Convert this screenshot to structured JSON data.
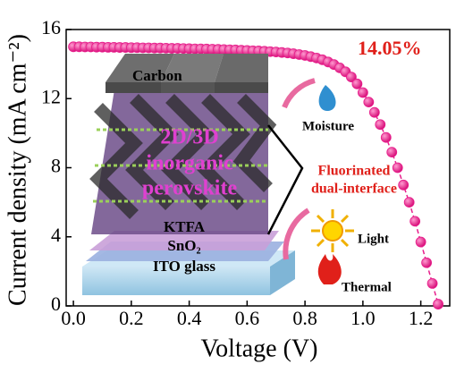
{
  "chart_data": {
    "type": "scatter",
    "xlabel": "Voltage (V)",
    "ylabel": "Current density (mA cm⁻²)",
    "color": "#e81e8c",
    "xlim": [
      -0.025,
      1.3
    ],
    "ylim": [
      0,
      16
    ],
    "xticks": [
      {
        "value": 0,
        "label": "0.0"
      },
      0.2,
      0.4,
      0.6,
      0.8,
      {
        "value": 1,
        "label": "1.0"
      },
      1.2
    ],
    "yticks": [
      0,
      4,
      8,
      12,
      16
    ],
    "x": [
      0,
      0.02,
      0.04,
      0.06,
      0.08,
      0.1,
      0.12,
      0.14,
      0.16,
      0.18,
      0.2,
      0.22,
      0.24,
      0.26,
      0.28,
      0.3,
      0.32,
      0.34,
      0.36,
      0.38,
      0.4,
      0.42,
      0.44,
      0.46,
      0.48,
      0.5,
      0.52,
      0.54,
      0.56,
      0.58,
      0.6,
      0.62,
      0.64,
      0.66,
      0.68,
      0.7,
      0.72,
      0.74,
      0.76,
      0.78,
      0.8,
      0.82,
      0.84,
      0.86,
      0.88,
      0.9,
      0.92,
      0.94,
      0.96,
      0.98,
      1,
      1.02,
      1.04,
      1.06,
      1.08,
      1.1,
      1.12,
      1.14,
      1.16,
      1.18,
      1.2,
      1.22,
      1.24,
      1.26
    ],
    "values": [
      15.0,
      15.0,
      14.99,
      14.99,
      14.98,
      14.98,
      14.97,
      14.97,
      14.96,
      14.96,
      14.95,
      14.95,
      14.94,
      14.94,
      14.93,
      14.93,
      14.92,
      14.91,
      14.91,
      14.9,
      14.89,
      14.88,
      14.88,
      14.87,
      14.86,
      14.85,
      14.84,
      14.83,
      14.82,
      14.8,
      14.79,
      14.77,
      14.76,
      14.74,
      14.72,
      14.7,
      14.67,
      14.64,
      14.6,
      14.55,
      14.5,
      14.43,
      14.35,
      14.25,
      14.12,
      13.97,
      13.78,
      13.55,
      13.25,
      12.85,
      12.35,
      11.8,
      11.2,
      10.5,
      9.75,
      8.9,
      8.0,
      7.0,
      6.0,
      4.9,
      3.7,
      2.5,
      1.3,
      0.1
    ],
    "annotations": {
      "efficiency": "14.05%",
      "carbon": "Carbon",
      "layer_2d3d": "2D/3D",
      "inorganic": "inorganic",
      "perovskite": "perovskite",
      "ktfa": "KTFA",
      "sno2": "SnO₂",
      "ito": "ITO glass",
      "moisture": "Moisture",
      "fluorinated": "Fluorinated",
      "dual": "dual-interface",
      "light": "Light",
      "thermal": "Thermal"
    }
  }
}
